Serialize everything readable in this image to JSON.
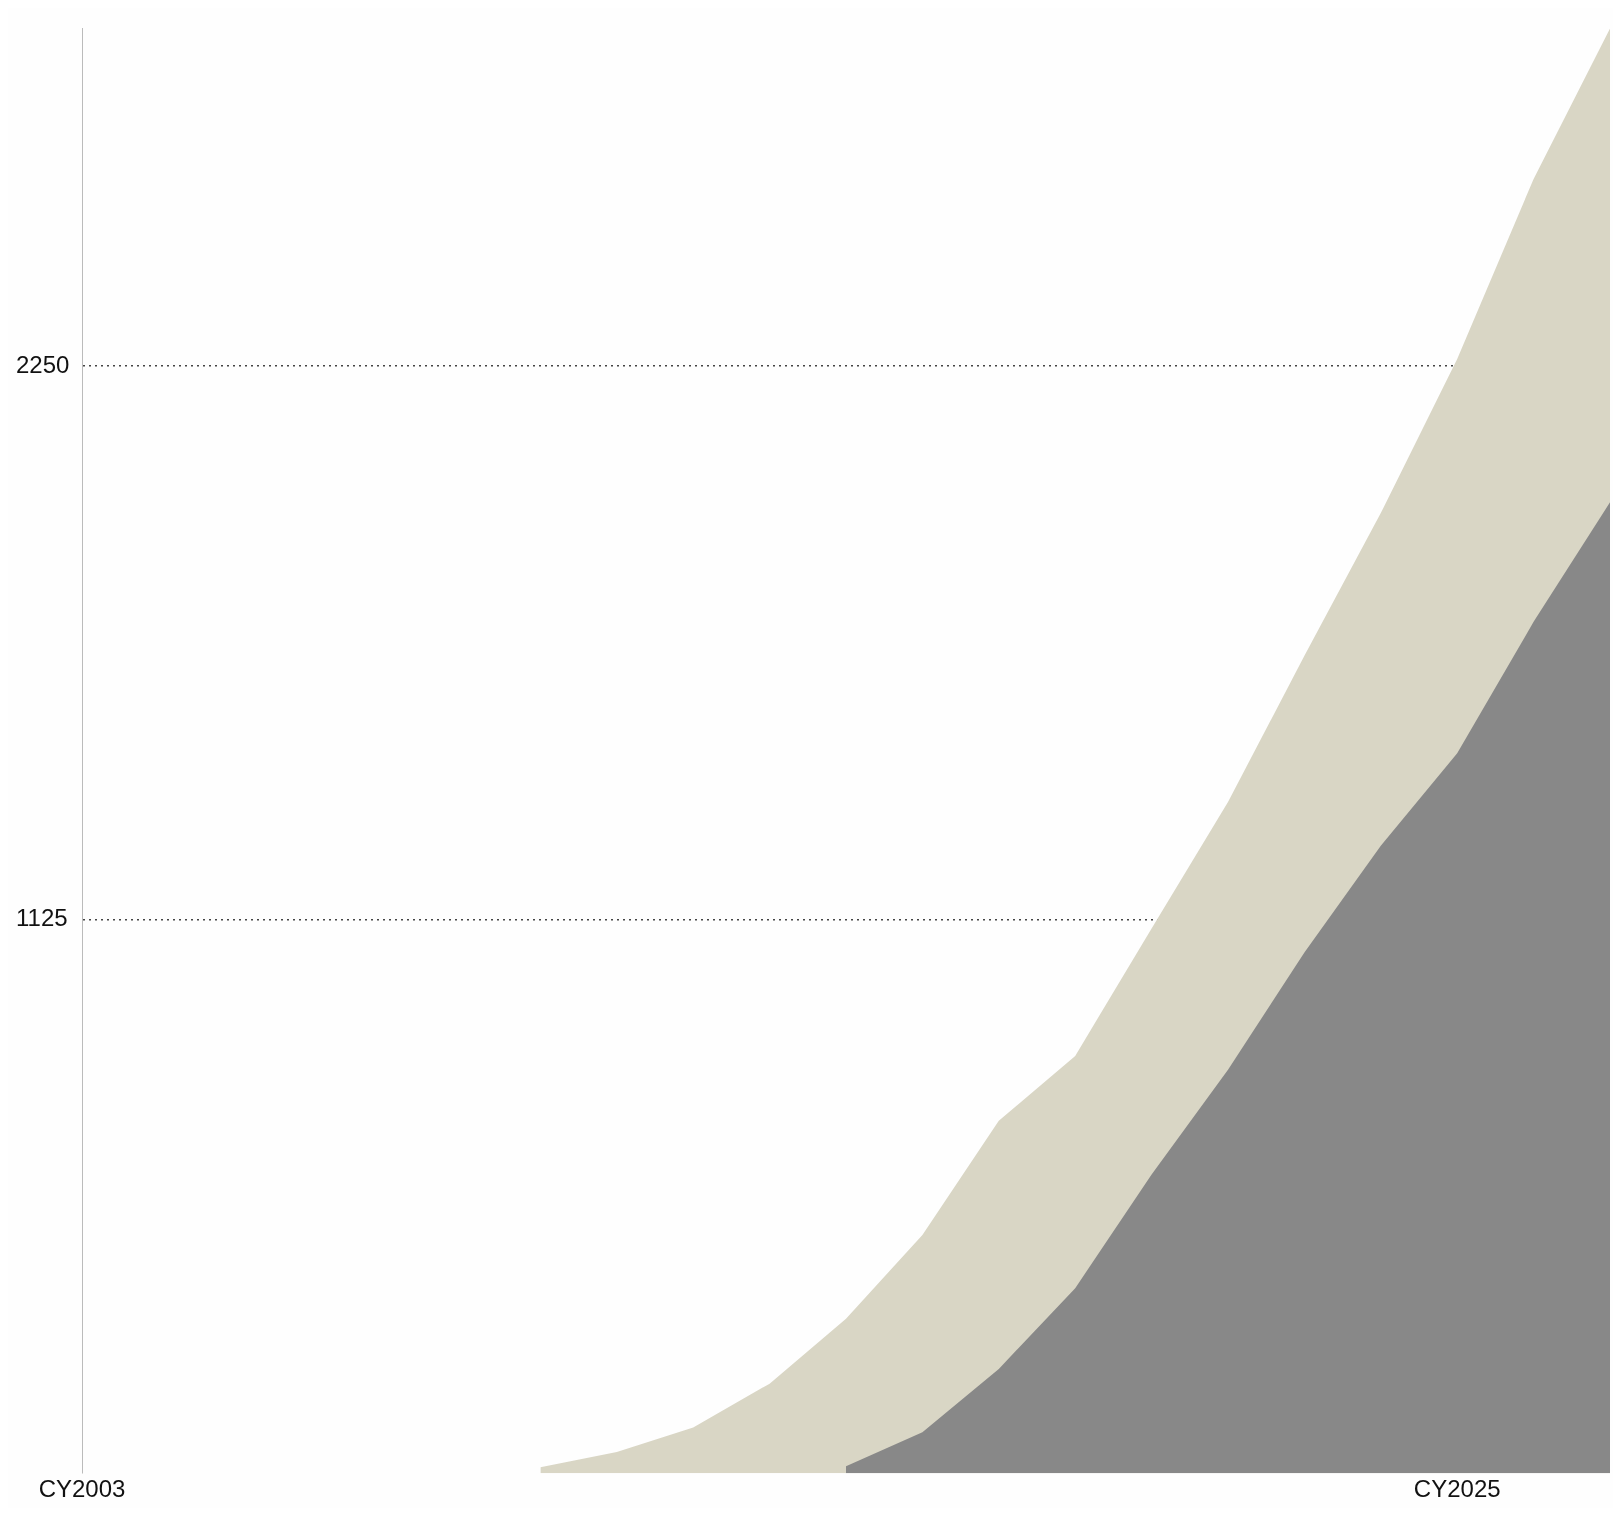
{
  "chart_data": {
    "type": "area",
    "categories": [
      "CY2003",
      null,
      null,
      null,
      null,
      null,
      null,
      null,
      null,
      null,
      null,
      null,
      null,
      null,
      null,
      null,
      null,
      null,
      "CY2025",
      null,
      null
    ],
    "ylim": [
      0,
      2936
    ],
    "yticks": [
      1125,
      2250
    ],
    "grid": "y",
    "legend": false,
    "series": [
      {
        "color": "#d9d6c5",
        "values": [
          null,
          null,
          null,
          null,
          null,
          null,
          12,
          43,
          93,
          182,
          314,
          484,
          716,
          848,
          1107,
          1364,
          1661,
          1951,
          2264,
          2630,
          2936
        ]
      },
      {
        "color": "#888888",
        "values": [
          null,
          null,
          null,
          null,
          null,
          null,
          null,
          null,
          null,
          null,
          14,
          83,
          212,
          376,
          607,
          820,
          1058,
          1275,
          1463,
          1730,
          1973
        ]
      }
    ]
  }
}
